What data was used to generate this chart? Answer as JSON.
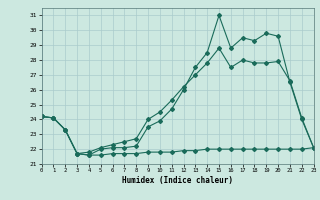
{
  "xlabel": "Humidex (Indice chaleur)",
  "bg_color": "#cce8e0",
  "grid_color": "#aacccc",
  "line_color": "#1a6b5a",
  "line1_x": [
    0,
    1,
    2,
    3,
    4,
    5,
    6,
    7,
    8,
    9,
    10,
    11,
    12,
    13,
    14,
    15,
    16,
    17,
    18,
    19,
    20,
    21,
    22,
    23
  ],
  "line1_y": [
    24.2,
    24.1,
    23.3,
    21.7,
    21.6,
    22.0,
    22.1,
    22.1,
    22.2,
    23.5,
    23.9,
    24.7,
    26.0,
    27.5,
    28.5,
    31.0,
    28.8,
    29.5,
    29.3,
    29.8,
    29.6,
    26.5,
    24.0,
    22.1
  ],
  "line2_x": [
    0,
    1,
    2,
    3,
    4,
    5,
    6,
    7,
    8,
    9,
    10,
    11,
    12,
    13,
    14,
    15,
    16,
    17,
    18,
    19,
    20,
    21,
    22,
    23
  ],
  "line2_y": [
    24.2,
    24.1,
    23.3,
    21.7,
    21.6,
    21.6,
    21.7,
    21.7,
    21.7,
    21.8,
    21.8,
    21.8,
    21.9,
    21.9,
    22.0,
    22.0,
    22.0,
    22.0,
    22.0,
    22.0,
    22.0,
    22.0,
    22.0,
    22.1
  ],
  "line3_x": [
    0,
    1,
    2,
    3,
    4,
    5,
    6,
    7,
    8,
    9,
    10,
    11,
    12,
    13,
    14,
    15,
    16,
    17,
    18,
    19,
    20,
    21,
    22,
    23
  ],
  "line3_y": [
    24.2,
    24.1,
    23.3,
    21.7,
    21.8,
    22.1,
    22.3,
    22.5,
    22.7,
    24.0,
    24.5,
    25.3,
    26.2,
    27.0,
    27.8,
    28.8,
    27.5,
    28.0,
    27.8,
    27.8,
    27.9,
    26.6,
    24.1,
    22.1
  ],
  "xlim": [
    0,
    23
  ],
  "ylim": [
    21,
    31.5
  ],
  "yticks": [
    21,
    22,
    23,
    24,
    25,
    26,
    27,
    28,
    29,
    30,
    31
  ],
  "xticks": [
    0,
    1,
    2,
    3,
    4,
    5,
    6,
    7,
    8,
    9,
    10,
    11,
    12,
    13,
    14,
    15,
    16,
    17,
    18,
    19,
    20,
    21,
    22,
    23
  ]
}
